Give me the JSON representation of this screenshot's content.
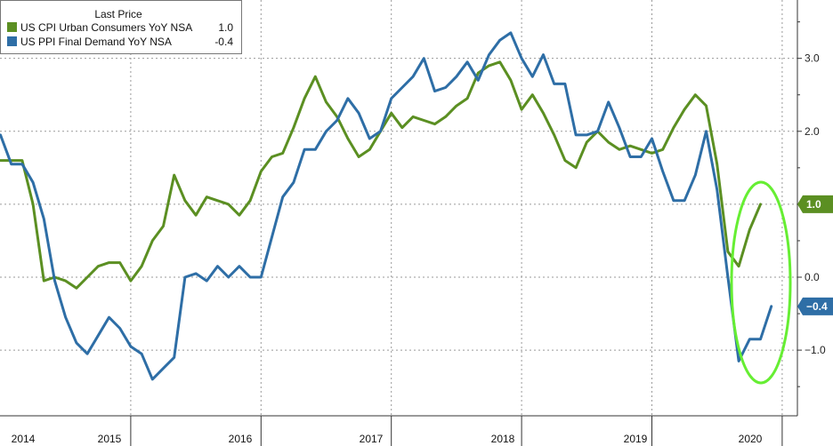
{
  "chart_data": {
    "type": "line",
    "title": "",
    "xlabel": "",
    "ylabel": "",
    "legend": {
      "title": "Last Price",
      "placement": "top-left",
      "entries": [
        {
          "name": "US CPI Urban Consumers YoY NSA",
          "last": "1.0",
          "color": "#5b8f22"
        },
        {
          "name": "US PPI Final Demand YoY NSA",
          "last": "-0.4",
          "color": "#2e6ea6"
        }
      ]
    },
    "y_ticks": [
      "3.0",
      "2.0",
      "1.0",
      "0.0",
      "-1.0"
    ],
    "x_labels": [
      "2014",
      "2015",
      "2016",
      "2017",
      "2018",
      "2019",
      "2020"
    ],
    "ylim": [
      -1.9,
      3.8
    ],
    "grid": true,
    "series": [
      {
        "name": "US CPI Urban Consumers YoY NSA",
        "color": "#5b8f22",
        "start": "2014-01",
        "values": [
          1.6,
          1.6,
          1.6,
          1.0,
          -0.05,
          0.0,
          -0.05,
          -0.15,
          0.0,
          0.15,
          0.2,
          0.2,
          -0.05,
          0.15,
          0.5,
          0.7,
          1.4,
          1.05,
          0.85,
          1.1,
          1.05,
          1.0,
          0.85,
          1.05,
          1.45,
          1.65,
          1.7,
          2.05,
          2.45,
          2.75,
          2.4,
          2.2,
          1.9,
          1.65,
          1.75,
          2.0,
          2.25,
          2.05,
          2.2,
          2.15,
          2.1,
          2.2,
          2.35,
          2.45,
          2.8,
          2.9,
          2.95,
          2.7,
          2.3,
          2.5,
          2.25,
          1.95,
          1.6,
          1.5,
          1.85,
          2.0,
          1.85,
          1.75,
          1.8,
          1.75,
          1.7,
          1.75,
          2.05,
          2.3,
          2.5,
          2.35,
          1.55,
          0.35,
          0.15,
          0.65,
          1.0
        ]
      },
      {
        "name": "US PPI Final Demand YoY NSA",
        "color": "#2e6ea6",
        "start": "2014-01",
        "values": [
          1.95,
          1.55,
          1.55,
          1.3,
          0.8,
          -0.05,
          -0.55,
          -0.9,
          -1.05,
          -0.8,
          -0.55,
          -0.7,
          -0.95,
          -1.05,
          -1.4,
          -1.25,
          -1.1,
          0.0,
          0.05,
          -0.05,
          0.15,
          0.0,
          0.15,
          0.0,
          0.0,
          0.55,
          1.1,
          1.3,
          1.75,
          1.75,
          2.0,
          2.15,
          2.45,
          2.25,
          1.9,
          2.0,
          2.45,
          2.6,
          2.75,
          3.0,
          2.55,
          2.6,
          2.75,
          2.95,
          2.7,
          3.05,
          3.25,
          3.35,
          3.0,
          2.75,
          3.05,
          2.65,
          2.65,
          1.95,
          1.95,
          2.0,
          2.4,
          2.05,
          1.65,
          1.65,
          1.9,
          1.45,
          1.05,
          1.05,
          1.4,
          2.0,
          1.2,
          0.0,
          -1.15,
          -0.85,
          -0.85,
          -0.4
        ]
      }
    ],
    "annotation": {
      "type": "ellipse",
      "color": "#66ee33"
    }
  }
}
